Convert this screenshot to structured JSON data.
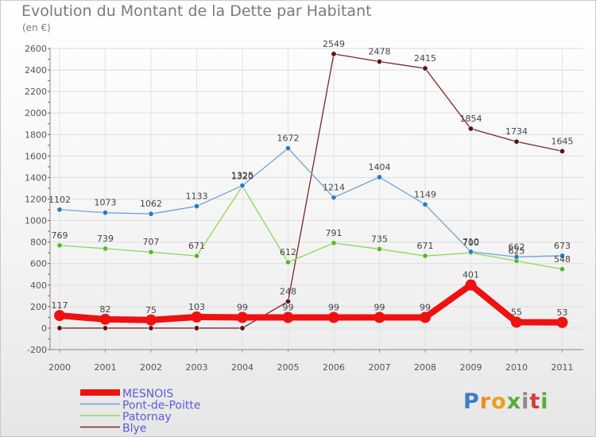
{
  "title": "Evolution du Montant de la Dette par Habitant",
  "subtitle": "(en €)",
  "logo": {
    "text": "Proxiti",
    "colors": [
      "#3a7fc4",
      "#f08a1c",
      "#e8a11a",
      "#5aab3a",
      "#8a8a8a",
      "#d63d3d",
      "#5aab3a"
    ]
  },
  "chart_data": {
    "type": "line",
    "x": [
      "2000",
      "2001",
      "2002",
      "2003",
      "2004",
      "2005",
      "2006",
      "2007",
      "2008",
      "2009",
      "2010",
      "2011"
    ],
    "ylim": [
      -200,
      2600
    ],
    "yticks": [
      "-200",
      "0",
      "200",
      "400",
      "600",
      "800",
      "1000",
      "1200",
      "1400",
      "1600",
      "1800",
      "2000",
      "2200",
      "2400",
      "2600"
    ],
    "grid": true,
    "legend_position": "bottom-left",
    "series": [
      {
        "name": "Blye",
        "color": "#7b2525",
        "values": [
          0,
          0,
          0,
          0,
          0,
          248,
          2549,
          2478,
          2415,
          1854,
          1734,
          1645
        ],
        "labels": [
          "",
          "",
          "",
          "",
          "",
          "248",
          "2549",
          "2478",
          "2415",
          "1854",
          "1734",
          "1645"
        ]
      },
      {
        "name": "Patornay",
        "color": "#8cd75a",
        "values": [
          769,
          739,
          707,
          671,
          1320,
          612,
          791,
          735,
          671,
          700,
          625,
          548
        ],
        "labels": [
          "769",
          "739",
          "707",
          "671",
          "1320",
          "612",
          "791",
          "735",
          "671",
          "700",
          "625",
          "548"
        ]
      },
      {
        "name": "Pont-de-Poitte",
        "color": "#6fa3d8",
        "values": [
          1102,
          1073,
          1062,
          1133,
          1325,
          1672,
          1214,
          1404,
          1149,
          710,
          662,
          673
        ],
        "labels": [
          "1102",
          "1073",
          "1062",
          "1133",
          "1325",
          "1672",
          "1214",
          "1404",
          "1149",
          "710",
          "662",
          "673"
        ]
      },
      {
        "name": "MESNOIS",
        "color": "#ee1111",
        "values": [
          117,
          82,
          75,
          103,
          99,
          99,
          99,
          99,
          99,
          401,
          55,
          53
        ],
        "labels": [
          "117",
          "82",
          "75",
          "103",
          "99",
          "99",
          "99",
          "99",
          "99",
          "401",
          "55",
          "53"
        ]
      }
    ],
    "legend": [
      "MESNOIS",
      "Pont-de-Poitte",
      "Patornay",
      "Blye"
    ]
  }
}
